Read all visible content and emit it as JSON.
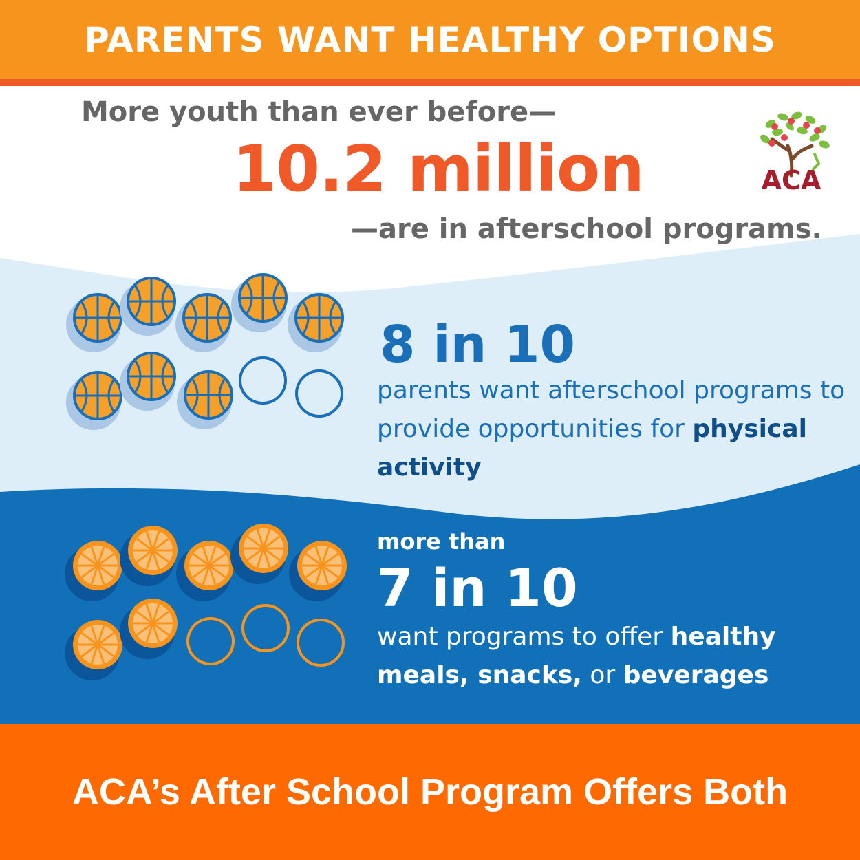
{
  "header": {
    "title": "PARENTS WANT HEALTHY OPTIONS"
  },
  "intro": {
    "lead": "More youth than ever before—",
    "figure": "10.2 million",
    "trail": "—are in afterschool programs."
  },
  "logo": {
    "text": "ACA"
  },
  "physical": {
    "stat": "8 in 10",
    "desc_plain": "parents want afterschool programs to provide opportunities for ",
    "desc_bold": "physical activity",
    "filled": 8,
    "total": 10,
    "icon": "basketball-icon"
  },
  "nutrition": {
    "prefix": "more than",
    "stat": "7 in 10",
    "desc_1": "want programs to offer ",
    "desc_bold_1": "healthy meals, snacks,",
    "desc_2": " or ",
    "desc_bold_2": "beverages",
    "filled": 7,
    "total": 10,
    "icon": "orange-slice-icon"
  },
  "footer": {
    "title": "ACA’s After School Program Offers Both"
  },
  "colors": {
    "orange": "#f7941e",
    "orange_dark": "#f05a28",
    "blue": "#1a6fb8",
    "light_blue": "#ddeef8"
  }
}
